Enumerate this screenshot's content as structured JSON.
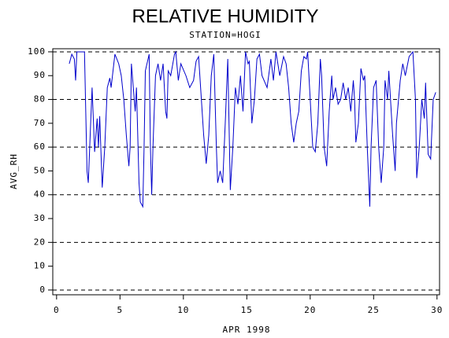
{
  "chart_data": {
    "type": "line",
    "title": "RELATIVE HUMIDITY",
    "subtitle": "STATION=HOGI",
    "x_label": "APR 1998",
    "y_label": "AVG_RH",
    "color": "#0000cc",
    "x": [
      1.0,
      1.2,
      1.4,
      1.5,
      1.6,
      1.8,
      2.0,
      2.2,
      2.4,
      2.5,
      2.8,
      3.0,
      3.2,
      3.3,
      3.4,
      3.6,
      3.8,
      4.0,
      4.2,
      4.3,
      4.6,
      4.9,
      5.1,
      5.3,
      5.5,
      5.7,
      5.8,
      5.9,
      6.2,
      6.3,
      6.5,
      6.6,
      6.8,
      6.9,
      7.0,
      7.3,
      7.4,
      7.5,
      7.6,
      7.8,
      8.0,
      8.2,
      8.4,
      8.6,
      8.7,
      8.8,
      9.0,
      9.3,
      9.4,
      9.6,
      9.8,
      10.2,
      10.5,
      10.8,
      11.0,
      11.2,
      11.6,
      11.8,
      12.0,
      12.2,
      12.4,
      12.6,
      12.7,
      12.9,
      13.1,
      13.3,
      13.5,
      13.7,
      13.9,
      14.1,
      14.3,
      14.5,
      14.7,
      14.9,
      15.1,
      15.2,
      15.4,
      15.6,
      15.8,
      16.0,
      16.2,
      16.6,
      16.9,
      17.1,
      17.3,
      17.6,
      17.9,
      18.1,
      18.3,
      18.5,
      18.7,
      18.9,
      19.1,
      19.3,
      19.5,
      19.7,
      19.8,
      20.0,
      20.2,
      20.4,
      20.6,
      20.8,
      20.9,
      21.1,
      21.3,
      21.5,
      21.7,
      21.8,
      22.0,
      22.2,
      22.4,
      22.6,
      22.8,
      23.0,
      23.2,
      23.4,
      23.5,
      23.6,
      23.8,
      24.0,
      24.2,
      24.3,
      24.5,
      24.7,
      24.8,
      25.0,
      25.2,
      25.4,
      25.6,
      25.8,
      25.9,
      26.1,
      26.2,
      26.5,
      26.7,
      26.8,
      27.1,
      27.3,
      27.5,
      27.8,
      28.1,
      28.3,
      28.4,
      28.6,
      28.8,
      29.0,
      29.1,
      29.3,
      29.5,
      29.7,
      29.9
    ],
    "values": [
      95,
      99,
      97,
      88,
      100,
      100,
      100,
      100,
      50,
      45,
      85,
      58,
      72,
      60,
      73,
      43,
      60,
      85,
      89,
      85,
      99,
      95,
      90,
      80,
      65,
      52,
      60,
      95,
      75,
      85,
      45,
      37,
      35,
      60,
      92,
      99,
      60,
      40,
      60,
      90,
      95,
      88,
      95,
      75,
      72,
      92,
      90,
      99,
      100,
      88,
      95,
      90,
      85,
      88,
      96,
      98,
      65,
      53,
      65,
      90,
      99,
      60,
      45,
      50,
      45,
      70,
      97,
      42,
      60,
      85,
      78,
      90,
      75,
      100,
      95,
      96,
      70,
      80,
      97,
      99,
      90,
      85,
      97,
      88,
      100,
      90,
      98,
      95,
      85,
      70,
      62,
      70,
      75,
      92,
      98,
      97,
      100,
      80,
      60,
      58,
      70,
      97,
      90,
      60,
      52,
      75,
      90,
      80,
      85,
      78,
      80,
      87,
      80,
      85,
      75,
      88,
      80,
      62,
      70,
      93,
      88,
      90,
      60,
      35,
      60,
      85,
      88,
      60,
      45,
      60,
      88,
      80,
      92,
      65,
      50,
      70,
      88,
      95,
      90,
      98,
      100,
      80,
      47,
      60,
      80,
      72,
      87,
      57,
      55,
      80,
      83
    ],
    "xlim": [
      -0.3,
      30.2
    ],
    "ylim": [
      -2,
      101.3
    ],
    "xticks": [
      0,
      5,
      10,
      15,
      20,
      25,
      30
    ],
    "yticks": [
      0,
      10,
      20,
      30,
      40,
      50,
      60,
      70,
      80,
      90,
      100
    ],
    "grid_values": [
      0,
      20,
      40,
      60,
      80,
      100
    ]
  }
}
